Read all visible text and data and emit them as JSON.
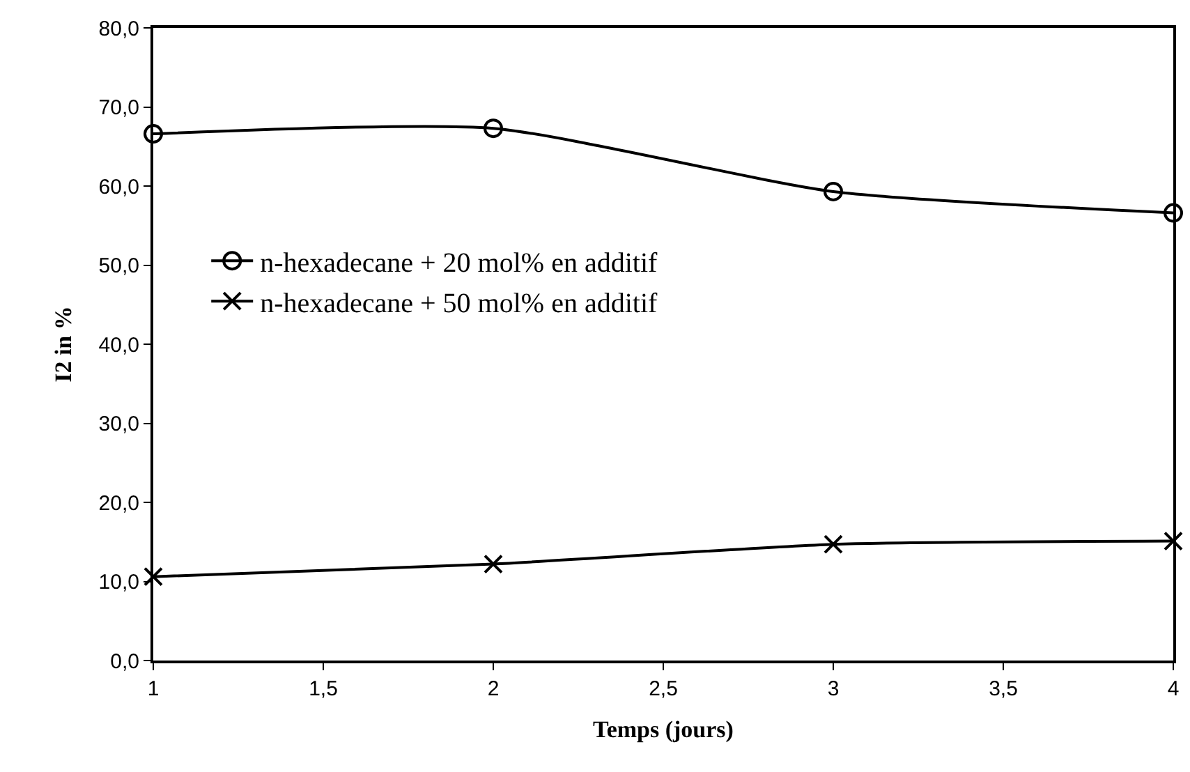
{
  "chart_data": {
    "type": "line",
    "xlabel": "Temps (jours)",
    "ylabel": "I2 in %",
    "x": [
      1,
      2,
      3,
      4
    ],
    "series": [
      {
        "name": "n-hexadecane + 20 mol% en additif",
        "color": "#000000",
        "marker": "circle",
        "values": [
          66.6,
          67.3,
          59.3,
          56.6
        ]
      },
      {
        "name": "n-hexadecane + 50 mol% en additif",
        "color": "#000000",
        "marker": "cross",
        "values": [
          10.6,
          12.2,
          14.7,
          15.1
        ]
      }
    ],
    "xlim": [
      1,
      4
    ],
    "xticks": [
      1,
      {
        "value": 1.5,
        "label": "1,5"
      },
      2,
      {
        "value": 2.5,
        "label": "2,5"
      },
      3,
      {
        "value": 3.5,
        "label": "3,5"
      },
      4
    ],
    "ylim": [
      0,
      80
    ],
    "yticks": [
      {
        "value": 0,
        "label": "0,0"
      },
      {
        "value": 10,
        "label": "10,0"
      },
      {
        "value": 20,
        "label": "20,0"
      },
      {
        "value": 30,
        "label": "30,0"
      },
      {
        "value": 40,
        "label": "40,0"
      },
      {
        "value": 50,
        "label": "50,0"
      },
      {
        "value": 60,
        "label": "60,0"
      },
      {
        "value": 70,
        "label": "70,0"
      },
      {
        "value": 80,
        "label": "80,0"
      }
    ],
    "grid": false,
    "legend": "left",
    "line_style": "solid"
  }
}
